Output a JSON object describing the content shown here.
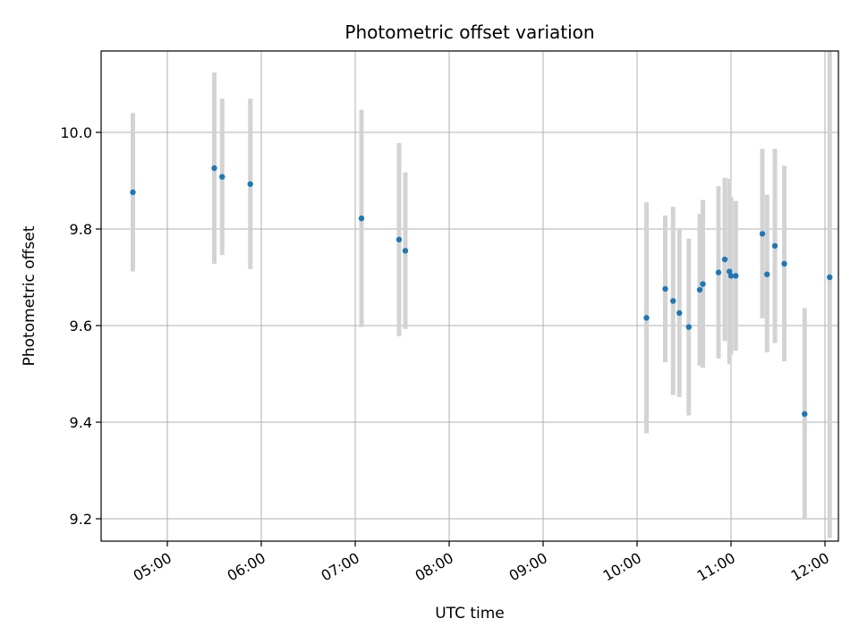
{
  "chart_data": {
    "type": "scatter",
    "title": "Photometric offset variation",
    "xlabel": "UTC time",
    "ylabel": "Photometric offset",
    "grid": true,
    "xlim": [
      "04:18",
      "12:00"
    ],
    "ylim": [
      9.155,
      10.17
    ],
    "x_ticks": [
      "05:00",
      "06:00",
      "07:00",
      "08:00",
      "09:00",
      "10:00",
      "11:00",
      "12:00"
    ],
    "y_ticks": [
      9.2,
      9.4,
      9.6,
      9.8,
      10.0
    ],
    "y_tick_labels": [
      "9.2",
      "9.4",
      "9.6",
      "9.8",
      "10.0"
    ],
    "point_color": "#1f77b4",
    "errorbar_color": "#d3d3d3",
    "points": [
      {
        "x": "04:38",
        "y": 9.876,
        "low": 9.712,
        "high": 10.04
      },
      {
        "x": "05:30",
        "y": 9.926,
        "low": 9.728,
        "high": 10.124
      },
      {
        "x": "05:35",
        "y": 9.908,
        "low": 9.746,
        "high": 10.07
      },
      {
        "x": "05:53",
        "y": 9.893,
        "low": 9.717,
        "high": 10.07
      },
      {
        "x": "07:04",
        "y": 9.822,
        "low": 9.597,
        "high": 10.047
      },
      {
        "x": "07:28",
        "y": 9.778,
        "low": 9.578,
        "high": 9.978
      },
      {
        "x": "07:32",
        "y": 9.755,
        "low": 9.593,
        "high": 9.917
      },
      {
        "x": "10:06",
        "y": 9.616,
        "low": 9.377,
        "high": 9.855
      },
      {
        "x": "10:18",
        "y": 9.676,
        "low": 9.524,
        "high": 9.828
      },
      {
        "x": "10:23",
        "y": 9.651,
        "low": 9.456,
        "high": 9.846
      },
      {
        "x": "10:27",
        "y": 9.626,
        "low": 9.452,
        "high": 9.8
      },
      {
        "x": "10:33",
        "y": 9.597,
        "low": 9.414,
        "high": 9.78
      },
      {
        "x": "10:40",
        "y": 9.674,
        "low": 9.517,
        "high": 9.831
      },
      {
        "x": "10:42",
        "y": 9.686,
        "low": 9.513,
        "high": 9.86
      },
      {
        "x": "10:52",
        "y": 9.71,
        "low": 9.532,
        "high": 9.889
      },
      {
        "x": "10:56",
        "y": 9.737,
        "low": 9.568,
        "high": 9.906
      },
      {
        "x": "10:59",
        "y": 9.712,
        "low": 9.52,
        "high": 9.904
      },
      {
        "x": "11:00",
        "y": 9.703,
        "low": 9.54,
        "high": 9.866
      },
      {
        "x": "11:03",
        "y": 9.703,
        "low": 9.548,
        "high": 9.858
      },
      {
        "x": "11:20",
        "y": 9.79,
        "low": 9.615,
        "high": 9.966
      },
      {
        "x": "11:23",
        "y": 9.706,
        "low": 9.545,
        "high": 9.871
      },
      {
        "x": "11:28",
        "y": 9.765,
        "low": 9.564,
        "high": 9.966
      },
      {
        "x": "11:34",
        "y": 9.728,
        "low": 9.526,
        "high": 9.931
      },
      {
        "x": "11:47",
        "y": 9.417,
        "low": 9.198,
        "high": 9.636
      },
      {
        "x": "12:03",
        "y": 9.7,
        "low": 9.16,
        "high": 10.17
      }
    ]
  }
}
